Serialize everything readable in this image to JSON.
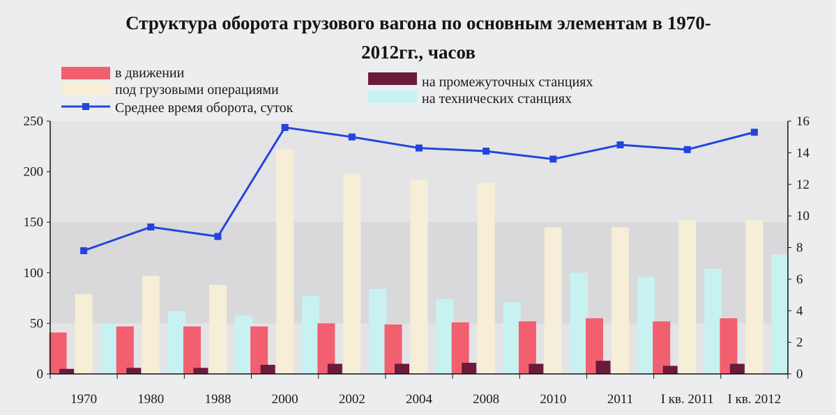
{
  "chart_data": {
    "type": "bar",
    "title_line1": "Структура оборота грузового вагона по основным элементам в 1970-",
    "title_line2": "2012гг., часов",
    "categories": [
      "1970",
      "1980",
      "1988",
      "2000",
      "2002",
      "2004",
      "2008",
      "2010",
      "2011",
      "I кв. 2011",
      "I кв. 2012"
    ],
    "series": [
      {
        "name": "в движении",
        "axis": "left",
        "color": "#f25f6f",
        "values": [
          41,
          47,
          47,
          47,
          50,
          49,
          51,
          52,
          55,
          52,
          55
        ]
      },
      {
        "name": "под грузовыми операциями",
        "axis": "left",
        "color": "#f6eed6",
        "values": [
          79,
          97,
          88,
          222,
          198,
          192,
          189,
          145,
          145,
          152,
          152
        ]
      },
      {
        "name": "на технических станциях",
        "axis": "left",
        "color": "#c8f2f2",
        "values": [
          50,
          62,
          58,
          77,
          84,
          74,
          71,
          100,
          96,
          104,
          118
        ]
      },
      {
        "name": "на промежуточных станциях",
        "axis": "left",
        "color": "#6a1a3a",
        "values": [
          5,
          6,
          6,
          9,
          10,
          10,
          11,
          10,
          13,
          8,
          10
        ]
      },
      {
        "name": "Среднее время оборота, суток",
        "type": "line",
        "axis": "right",
        "color": "#2244dd",
        "values": [
          7.8,
          9.3,
          8.7,
          15.6,
          15.0,
          14.3,
          14.1,
          13.6,
          14.5,
          14.2,
          15.3
        ]
      }
    ],
    "ylim_left": [
      0,
      250
    ],
    "yticks_left": [
      0,
      50,
      100,
      150,
      200,
      250
    ],
    "ylim_right": [
      0,
      16
    ],
    "yticks_right": [
      0,
      2,
      4,
      6,
      8,
      10,
      12,
      14,
      16
    ],
    "xlabel": "",
    "ylabel": "",
    "grid": false,
    "legend_placement": "top"
  }
}
